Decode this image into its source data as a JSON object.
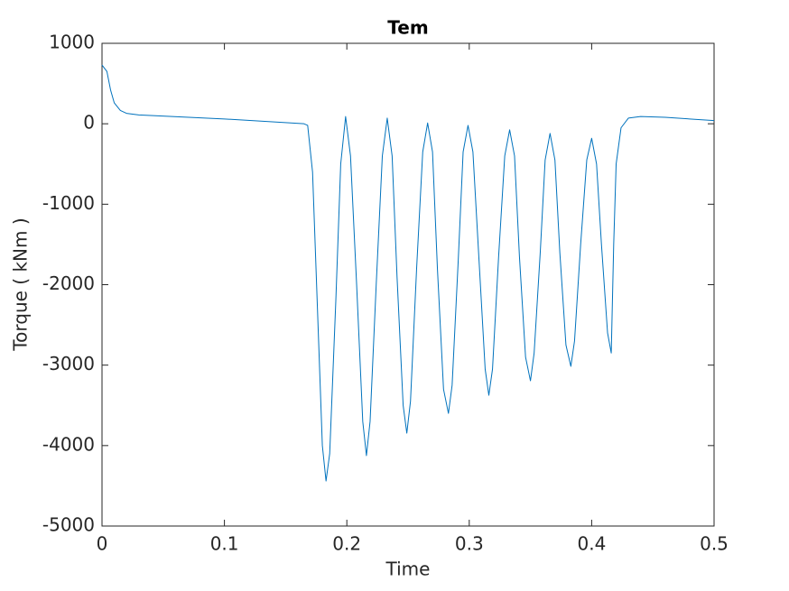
{
  "chart_data": {
    "type": "line",
    "title": "Tem",
    "xlabel": "Time",
    "ylabel": "Torque ( kNm )",
    "color": "#0072bd",
    "xlim": [
      0,
      0.5
    ],
    "xticks": [
      0,
      0.1,
      0.2,
      0.3,
      0.4,
      0.5
    ],
    "ylim": [
      -5000,
      1000
    ],
    "yticks": [
      -5000,
      -4000,
      -3000,
      -2000,
      -1000,
      0,
      1000
    ],
    "x": [
      0,
      0.004,
      0.007,
      0.01,
      0.015,
      0.02,
      0.03,
      0.1,
      0.165,
      0.168,
      0.172,
      0.176,
      0.18,
      0.183,
      0.186,
      0.191,
      0.195,
      0.199,
      0.203,
      0.208,
      0.213,
      0.216,
      0.219,
      0.224,
      0.229,
      0.233,
      0.237,
      0.241,
      0.246,
      0.249,
      0.252,
      0.257,
      0.262,
      0.266,
      0.27,
      0.274,
      0.279,
      0.283,
      0.286,
      0.291,
      0.295,
      0.299,
      0.303,
      0.308,
      0.313,
      0.316,
      0.319,
      0.324,
      0.329,
      0.333,
      0.337,
      0.341,
      0.346,
      0.35,
      0.353,
      0.358,
      0.362,
      0.366,
      0.37,
      0.374,
      0.379,
      0.383,
      0.386,
      0.391,
      0.396,
      0.4,
      0.404,
      0.408,
      0.413,
      0.416,
      0.418,
      0.42,
      0.424,
      0.43,
      0.44,
      0.46,
      0.5
    ],
    "values": [
      730,
      650,
      420,
      260,
      165,
      130,
      110,
      60,
      0,
      -20,
      -600,
      -2300,
      -4000,
      -4440,
      -4100,
      -2200,
      -500,
      90,
      -400,
      -2000,
      -3700,
      -4125,
      -3700,
      -2000,
      -400,
      70,
      -400,
      -1900,
      -3500,
      -3845,
      -3450,
      -1800,
      -350,
      10,
      -350,
      -1800,
      -3300,
      -3600,
      -3250,
      -1700,
      -350,
      -20,
      -350,
      -1700,
      -3050,
      -3375,
      -3050,
      -1650,
      -400,
      -75,
      -400,
      -1650,
      -2900,
      -3195,
      -2850,
      -1600,
      -450,
      -120,
      -450,
      -1600,
      -2750,
      -3015,
      -2700,
      -1500,
      -450,
      -180,
      -500,
      -1500,
      -2600,
      -2850,
      -1500,
      -500,
      -50,
      70,
      90,
      80,
      40
    ]
  }
}
